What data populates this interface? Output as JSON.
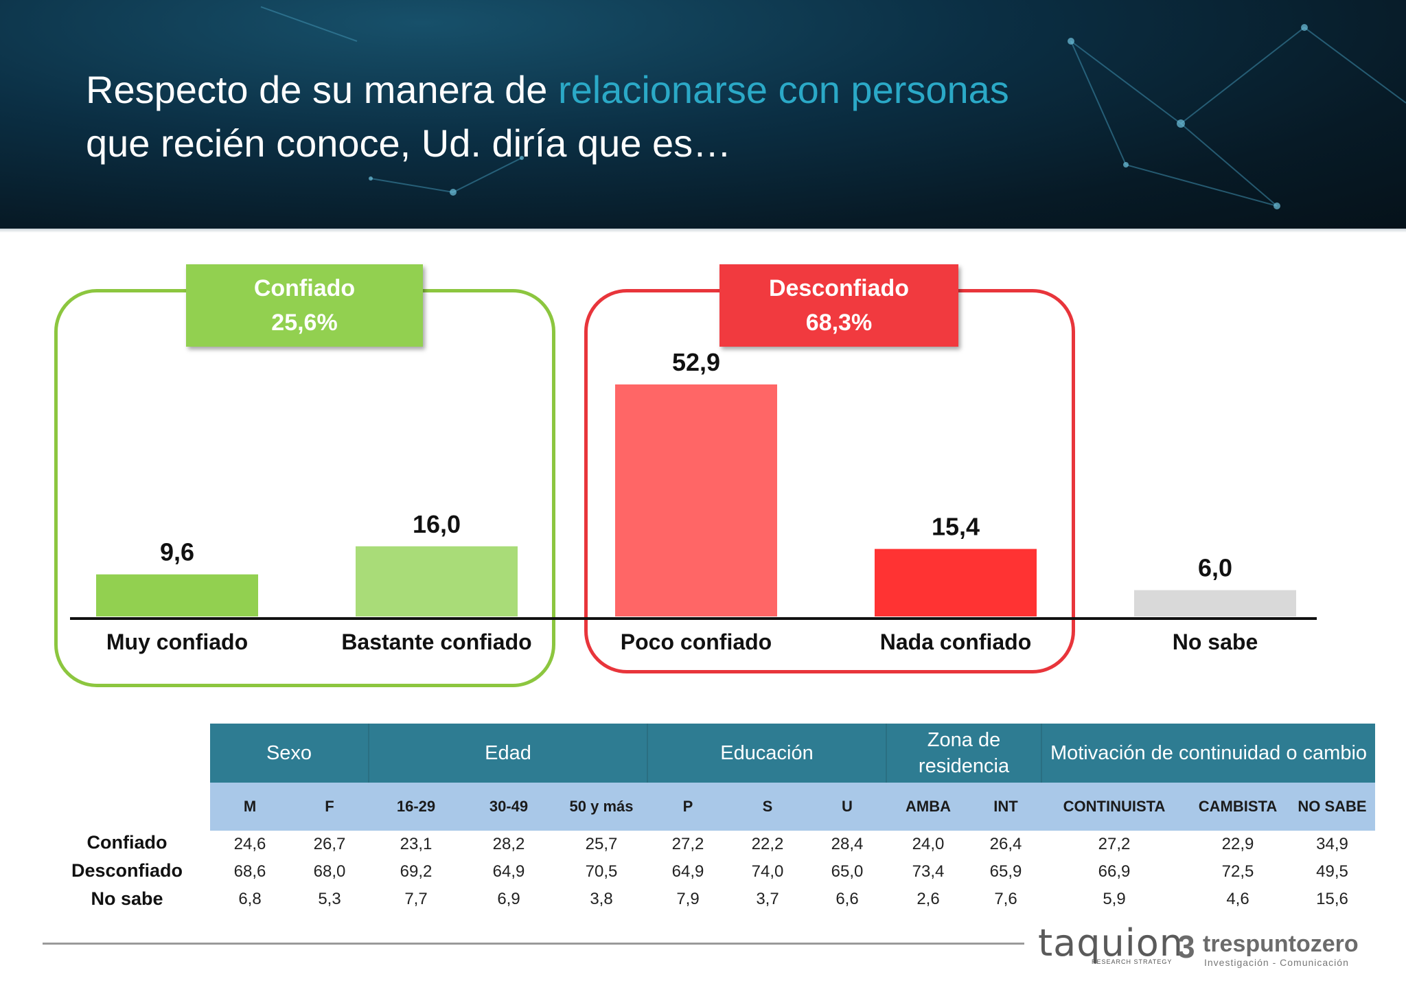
{
  "title": {
    "part1": "Respecto de su manera de ",
    "highlight": "relacionarse con personas",
    "part2": "que recién conoce, Ud. diría que es…"
  },
  "groups": {
    "confiado": {
      "name": "Confiado",
      "value": "25,6%",
      "color": "#8cc63f"
    },
    "desconfiado": {
      "name": "Desconfiado",
      "value": "68,3%",
      "color": "#e8353b"
    }
  },
  "chart_data": {
    "type": "bar",
    "categories": [
      "Muy confiado",
      "Bastante confiado",
      "Poco confiado",
      "Nada confiado",
      "No sabe"
    ],
    "values": [
      9.6,
      16.0,
      52.9,
      15.4,
      6.0
    ],
    "value_labels": [
      "9,6",
      "16,0",
      "52,9",
      "15,4",
      "6,0"
    ],
    "colors": [
      "#92d050",
      "#a9dc78",
      "#ff6666",
      "#ff3333",
      "#d9d9d9"
    ],
    "ylim": [
      0,
      60
    ],
    "title": "",
    "xlabel": "",
    "ylabel": ""
  },
  "table": {
    "groups": [
      {
        "label": "Sexo",
        "span": 2
      },
      {
        "label": "Edad",
        "span": 3
      },
      {
        "label": "Educación",
        "span": 3
      },
      {
        "label": "Zona de residencia",
        "span": 2
      },
      {
        "label": "Motivación de continuidad o cambio",
        "span": 3
      }
    ],
    "columns": [
      "M",
      "F",
      "16-29",
      "30-49",
      "50 y más",
      "P",
      "S",
      "U",
      "AMBA",
      "INT",
      "CONTINUISTA",
      "CAMBISTA",
      "NO SABE"
    ],
    "rows": [
      {
        "label": "Confiado",
        "values": [
          "24,6",
          "26,7",
          "23,1",
          "28,2",
          "25,7",
          "27,2",
          "22,2",
          "28,4",
          "24,0",
          "26,4",
          "27,2",
          "22,9",
          "34,9"
        ]
      },
      {
        "label": "Desconfiado",
        "values": [
          "68,6",
          "68,0",
          "69,2",
          "64,9",
          "70,5",
          "64,9",
          "74,0",
          "65,0",
          "73,4",
          "65,9",
          "66,9",
          "72,5",
          "49,5"
        ]
      },
      {
        "label": "No sabe",
        "values": [
          "6,8",
          "5,3",
          "7,7",
          "6,9",
          "3,8",
          "7,9",
          "3,7",
          "6,6",
          "2,6",
          "7,6",
          "5,9",
          "4,6",
          "15,6"
        ]
      }
    ]
  },
  "footer": {
    "logo1": "taquion",
    "logo1_sub": "RESEARCH STRATEGY",
    "logo2_mark": "3",
    "logo2": "trespuntozero",
    "logo2_sub": "Investigación - Comunicación"
  }
}
